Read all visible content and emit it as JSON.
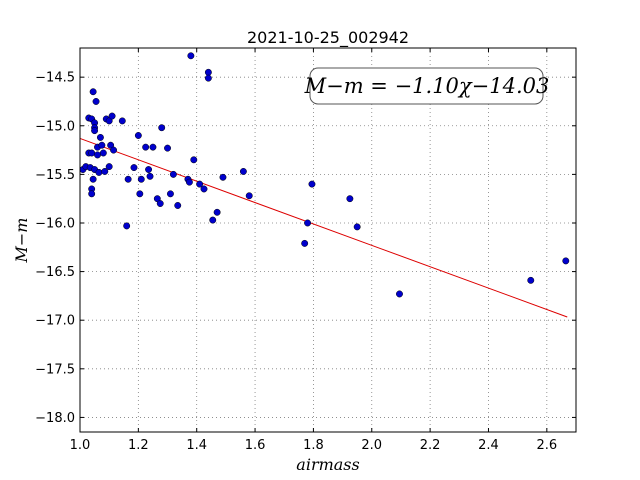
{
  "chart_data": {
    "type": "scatter",
    "title": "2021-10-25_002942",
    "xlabel": "airmass",
    "ylabel": "M−m",
    "xlim": [
      1.0,
      2.7
    ],
    "ylim": [
      -18.15,
      -14.2
    ],
    "xticks": [
      1.0,
      1.2,
      1.4,
      1.6,
      1.8,
      2.0,
      2.2,
      2.4,
      2.6
    ],
    "xtick_labels": [
      "1.0",
      "1.2",
      "1.4",
      "1.6",
      "1.8",
      "2.0",
      "2.2",
      "2.4",
      "2.6"
    ],
    "yticks": [
      -14.5,
      -15.0,
      -15.5,
      -16.0,
      -16.5,
      -17.0,
      -17.5,
      -18.0
    ],
    "ytick_labels": [
      "−14.5",
      "−15.0",
      "−15.5",
      "−16.0",
      "−16.5",
      "−17.0",
      "−17.5",
      "−18.0"
    ],
    "grid": true,
    "annotation": "M−m = −1.10χ−14.03",
    "point_color": "#0000cc",
    "fit_color": "#dd0000",
    "fit": {
      "slope": -1.1,
      "intercept": -14.03,
      "x_range": [
        1.0,
        2.67
      ]
    },
    "points": [
      [
        1.01,
        -15.45
      ],
      [
        1.02,
        -15.42
      ],
      [
        1.03,
        -14.92
      ],
      [
        1.03,
        -15.28
      ],
      [
        1.035,
        -15.43
      ],
      [
        1.04,
        -15.65
      ],
      [
        1.04,
        -15.7
      ],
      [
        1.04,
        -15.28
      ],
      [
        1.045,
        -15.55
      ],
      [
        1.04,
        -14.93
      ],
      [
        1.045,
        -14.65
      ],
      [
        1.05,
        -14.97
      ],
      [
        1.05,
        -15.02
      ],
      [
        1.05,
        -15.05
      ],
      [
        1.05,
        -15.45
      ],
      [
        1.055,
        -14.75
      ],
      [
        1.06,
        -15.22
      ],
      [
        1.06,
        -15.3
      ],
      [
        1.065,
        -15.48
      ],
      [
        1.07,
        -15.12
      ],
      [
        1.075,
        -15.2
      ],
      [
        1.08,
        -15.28
      ],
      [
        1.085,
        -15.47
      ],
      [
        1.09,
        -14.93
      ],
      [
        1.1,
        -14.95
      ],
      [
        1.1,
        -15.42
      ],
      [
        1.105,
        -15.2
      ],
      [
        1.11,
        -14.9
      ],
      [
        1.115,
        -15.25
      ],
      [
        1.145,
        -14.95
      ],
      [
        1.16,
        -16.03
      ],
      [
        1.165,
        -15.55
      ],
      [
        1.185,
        -15.43
      ],
      [
        1.2,
        -15.1
      ],
      [
        1.205,
        -15.7
      ],
      [
        1.21,
        -15.55
      ],
      [
        1.225,
        -15.22
      ],
      [
        1.235,
        -15.45
      ],
      [
        1.24,
        -15.52
      ],
      [
        1.25,
        -15.22
      ],
      [
        1.265,
        -15.75
      ],
      [
        1.275,
        -15.8
      ],
      [
        1.28,
        -15.02
      ],
      [
        1.3,
        -15.23
      ],
      [
        1.31,
        -15.7
      ],
      [
        1.32,
        -15.5
      ],
      [
        1.335,
        -15.82
      ],
      [
        1.37,
        -15.55
      ],
      [
        1.375,
        -15.58
      ],
      [
        1.38,
        -14.28
      ],
      [
        1.39,
        -15.35
      ],
      [
        1.41,
        -15.6
      ],
      [
        1.425,
        -15.65
      ],
      [
        1.44,
        -14.45
      ],
      [
        1.44,
        -14.51
      ],
      [
        1.455,
        -15.97
      ],
      [
        1.47,
        -15.89
      ],
      [
        1.49,
        -15.53
      ],
      [
        1.56,
        -15.47
      ],
      [
        1.58,
        -15.72
      ],
      [
        1.77,
        -16.21
      ],
      [
        1.78,
        -16.0
      ],
      [
        1.795,
        -15.6
      ],
      [
        1.925,
        -15.75
      ],
      [
        1.95,
        -16.04
      ],
      [
        2.095,
        -16.73
      ],
      [
        2.545,
        -16.59
      ],
      [
        2.665,
        -16.39
      ]
    ]
  }
}
